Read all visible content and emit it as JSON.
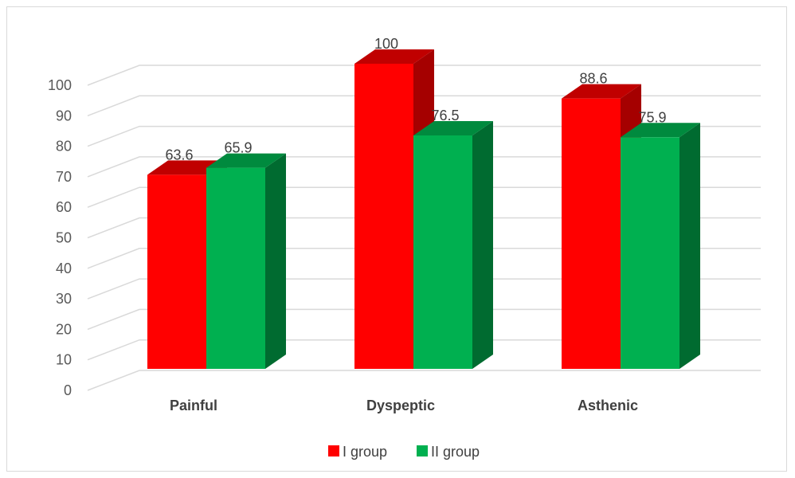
{
  "chart_data": {
    "type": "bar",
    "title": "",
    "xlabel": "",
    "ylabel": "",
    "categories": [
      "Painful",
      "Dyspeptic",
      "Asthenic"
    ],
    "series": [
      {
        "name": "I group",
        "values": [
          63.6,
          100,
          88.6
        ],
        "color": "#ff0000",
        "top_color": "#c00000",
        "side_color": "#a50000"
      },
      {
        "name": "II group",
        "values": [
          65.9,
          76.5,
          75.9
        ],
        "color": "#00b050",
        "top_color": "#008a3e",
        "side_color": "#006b30"
      }
    ],
    "value_labels": [
      [
        "63.6",
        "100",
        "88.6"
      ],
      [
        "65.9",
        "76.5",
        "75.9"
      ]
    ],
    "ylim": [
      0,
      100
    ],
    "yticks": [
      "0",
      "10",
      "20",
      "30",
      "40",
      "50",
      "60",
      "70",
      "80",
      "90",
      "100"
    ],
    "grid": true,
    "legend_position": "bottom",
    "style": "3d-clustered-column"
  }
}
